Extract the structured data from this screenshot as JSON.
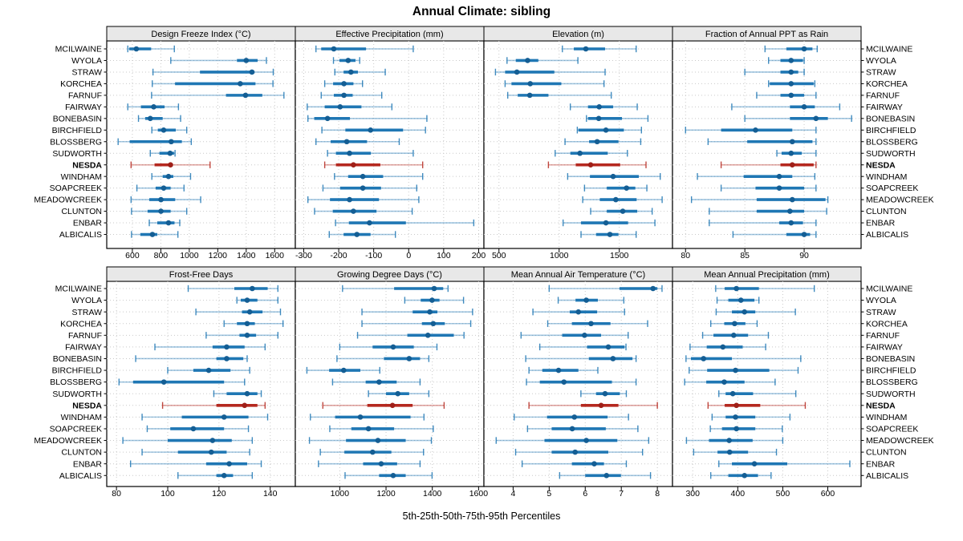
{
  "chart_data": {
    "type": "scatter",
    "subtype": "five-number-percentile-dotplot",
    "title": "Annual Climate: sibling",
    "caption": "5th-25th-50th-75th-95th Percentiles",
    "percentiles": [
      5,
      25,
      50,
      75,
      95
    ],
    "legend": "none",
    "grid": true,
    "highlight_station": "NESDA",
    "colors": {
      "series": "#1f77b4",
      "series_dot": "#145e94",
      "highlight": "#b5281f",
      "highlight_dot": "#9f1f18",
      "strip_bg": "#e8e8e8",
      "grid": "#c9c9c9",
      "border": "#000000"
    },
    "stations": [
      "MCILWAINE",
      "WYOLA",
      "STRAW",
      "KORCHEA",
      "FARNUF",
      "FAIRWAY",
      "BONEBASIN",
      "BIRCHFIELD",
      "BLOSSBERG",
      "SUDWORTH",
      "NESDA",
      "WINDHAM",
      "SOAPCREEK",
      "MEADOWCREEK",
      "CLUNTON",
      "ENBAR",
      "ALBICALIS"
    ],
    "panels": [
      {
        "label": "Design Freeze Index (°C)",
        "ticks": [
          600,
          800,
          1000,
          1200,
          1400,
          1600
        ],
        "xlim": [
          420,
          1745
        ],
        "values": [
          [
            568,
            578,
            628,
            732,
            895
          ],
          [
            870,
            1335,
            1400,
            1480,
            1542
          ],
          [
            745,
            1075,
            1440,
            1458,
            1590
          ],
          [
            740,
            900,
            1358,
            1465,
            1588
          ],
          [
            735,
            1258,
            1395,
            1513,
            1665
          ],
          [
            568,
            660,
            750,
            826,
            924
          ],
          [
            643,
            690,
            726,
            813,
            939
          ],
          [
            737,
            779,
            820,
            905,
            982
          ],
          [
            500,
            581,
            873,
            948,
            1014
          ],
          [
            726,
            790,
            865,
            893,
            900
          ],
          [
            591,
            756,
            868,
            885,
            1146
          ],
          [
            737,
            813,
            854,
            888,
            1009
          ],
          [
            632,
            764,
            820,
            869,
            963
          ],
          [
            591,
            719,
            801,
            901,
            1080
          ],
          [
            594,
            707,
            801,
            869,
            982
          ],
          [
            719,
            775,
            854,
            896,
            933
          ],
          [
            594,
            656,
            741,
            775,
            920
          ]
        ]
      },
      {
        "label": "Effective Precipitation (mm)",
        "ticks": [
          -300,
          -200,
          -100,
          0,
          100,
          200
        ],
        "xlim": [
          -324,
          215
        ],
        "values": [
          [
            -265,
            -250,
            -214,
            -122,
            13
          ],
          [
            -215,
            -198,
            -173,
            -152,
            -140
          ],
          [
            -211,
            -186,
            -165,
            -145,
            -67
          ],
          [
            -240,
            -216,
            -185,
            -158,
            -132
          ],
          [
            -250,
            -214,
            -185,
            -160,
            -77
          ],
          [
            -290,
            -240,
            -196,
            -135,
            -48
          ],
          [
            -288,
            -270,
            -232,
            -168,
            52
          ],
          [
            -248,
            -181,
            -109,
            -16,
            48
          ],
          [
            -265,
            -223,
            -177,
            -119,
            -27
          ],
          [
            -232,
            -208,
            -169,
            -108,
            13
          ],
          [
            -240,
            -208,
            -158,
            -81,
            40
          ],
          [
            -212,
            -173,
            -131,
            -73,
            40
          ],
          [
            -245,
            -196,
            -131,
            -79,
            23
          ],
          [
            -288,
            -225,
            -169,
            -85,
            29
          ],
          [
            -269,
            -217,
            -158,
            -92,
            10
          ],
          [
            -209,
            -171,
            -112,
            -8,
            186
          ],
          [
            -227,
            -186,
            -148,
            -109,
            -38
          ]
        ]
      },
      {
        "label": "Elevation (m)",
        "ticks": [
          500,
          1000,
          1500
        ],
        "xlim": [
          375,
          1942
        ],
        "values": [
          [
            1027,
            1122,
            1222,
            1382,
            1640
          ],
          [
            567,
            640,
            738,
            827,
            1156
          ],
          [
            471,
            551,
            649,
            960,
            1382
          ],
          [
            551,
            604,
            760,
            1018,
            1373
          ],
          [
            573,
            656,
            756,
            911,
            1433
          ],
          [
            1093,
            1240,
            1333,
            1449,
            1649
          ],
          [
            1227,
            1240,
            1329,
            1522,
            1738
          ],
          [
            1151,
            1160,
            1389,
            1538,
            1684
          ],
          [
            1049,
            1249,
            1316,
            1493,
            1678
          ],
          [
            967,
            1093,
            1173,
            1404,
            1567
          ],
          [
            911,
            1138,
            1262,
            1507,
            1722
          ],
          [
            1071,
            1256,
            1449,
            1662,
            1840
          ],
          [
            1211,
            1396,
            1560,
            1633,
            1729
          ],
          [
            1196,
            1338,
            1471,
            1644,
            1856
          ],
          [
            1262,
            1396,
            1529,
            1649,
            1773
          ],
          [
            1033,
            1182,
            1389,
            1573,
            1796
          ],
          [
            1182,
            1307,
            1422,
            1493,
            1640
          ]
        ]
      },
      {
        "label": "Fraction of Annual PPT as Rain",
        "ticks": [
          80,
          85,
          90
        ],
        "xlim": [
          78.9,
          94.8
        ],
        "values": [
          [
            86.7,
            88.5,
            90.0,
            90.7,
            91.1
          ],
          [
            87.0,
            88.0,
            88.9,
            89.9,
            90.0
          ],
          [
            85.0,
            88.0,
            88.9,
            89.5,
            90.0
          ],
          [
            87.0,
            87.1,
            88.9,
            90.8,
            90.9
          ],
          [
            86.0,
            88.0,
            88.9,
            90.0,
            91.0
          ],
          [
            83.9,
            88.8,
            90.0,
            90.9,
            93.0
          ],
          [
            85.0,
            88.8,
            91.0,
            92.0,
            94.0
          ],
          [
            80.0,
            83.0,
            85.9,
            89.0,
            91.0
          ],
          [
            81.9,
            85.2,
            89.0,
            90.7,
            91.0
          ],
          [
            87.7,
            88.1,
            88.9,
            89.8,
            91.0
          ],
          [
            83.0,
            88.0,
            89.0,
            90.8,
            91.0
          ],
          [
            81.0,
            84.9,
            87.9,
            89.0,
            90.9
          ],
          [
            83.0,
            85.9,
            87.9,
            90.0,
            91.0
          ],
          [
            80.5,
            86.0,
            89.0,
            91.8,
            92.0
          ],
          [
            82.0,
            86.0,
            88.8,
            90.0,
            91.9
          ],
          [
            82.0,
            87.9,
            88.9,
            89.9,
            91.0
          ],
          [
            84.0,
            88.5,
            90.0,
            90.5,
            91.0
          ]
        ]
      },
      {
        "label": "Frost-Free Days",
        "ticks": [
          80,
          100,
          120,
          140
        ],
        "xlim": [
          76.2,
          149.8
        ],
        "values": [
          [
            108,
            126,
            133,
            139,
            143
          ],
          [
            127,
            128.5,
            131,
            135,
            143
          ],
          [
            111,
            129,
            132,
            137,
            144
          ],
          [
            122,
            127,
            131,
            134,
            145
          ],
          [
            115,
            128,
            131,
            134.5,
            143
          ],
          [
            95,
            117.5,
            123,
            130,
            138
          ],
          [
            87.5,
            119,
            123,
            129.5,
            131
          ],
          [
            100,
            110,
            116,
            124.5,
            132
          ],
          [
            81,
            86.5,
            98.5,
            122,
            130
          ],
          [
            118,
            123,
            131,
            135,
            136.5
          ],
          [
            98,
            119,
            130,
            135,
            138
          ],
          [
            90,
            105.5,
            122,
            131.5,
            139
          ],
          [
            92,
            101,
            110,
            122,
            131.5
          ],
          [
            82.5,
            100,
            117.5,
            125,
            133
          ],
          [
            90,
            104,
            117,
            123,
            132
          ],
          [
            85.5,
            115,
            124,
            131,
            136.5
          ],
          [
            104,
            119,
            122,
            125.5,
            133
          ]
        ]
      },
      {
        "label": "Growing Degree Days (°C)",
        "ticks": [
          1000,
          1200,
          1400,
          1600
        ],
        "xlim": [
          808,
          1623
        ],
        "values": [
          [
            1012,
            1235,
            1408,
            1447,
            1468
          ],
          [
            1281,
            1350,
            1399,
            1431,
            1535
          ],
          [
            1096,
            1315,
            1389,
            1422,
            1574
          ],
          [
            1096,
            1355,
            1404,
            1454,
            1566
          ],
          [
            1077,
            1292,
            1381,
            1493,
            1537
          ],
          [
            1000,
            1142,
            1231,
            1320,
            1420
          ],
          [
            988,
            1191,
            1300,
            1347,
            1385
          ],
          [
            858,
            954,
            1017,
            1089,
            1173
          ],
          [
            969,
            1112,
            1170,
            1246,
            1347
          ],
          [
            1124,
            1200,
            1251,
            1300,
            1385
          ],
          [
            927,
            1119,
            1228,
            1315,
            1451
          ],
          [
            873,
            980,
            1089,
            1306,
            1364
          ],
          [
            957,
            1050,
            1124,
            1235,
            1404
          ],
          [
            869,
            1027,
            1165,
            1285,
            1396
          ],
          [
            916,
            1020,
            1142,
            1223,
            1362
          ],
          [
            908,
            1101,
            1179,
            1248,
            1347
          ],
          [
            1023,
            1170,
            1231,
            1285,
            1399
          ]
        ]
      },
      {
        "label": "Mean Annual Air Temperature (°C)",
        "ticks": [
          4,
          5,
          6,
          7,
          8
        ],
        "xlim": [
          3.19,
          8.42
        ],
        "values": [
          [
            5.0,
            6.95,
            7.88,
            8.0,
            8.13
          ],
          [
            5.25,
            5.73,
            6.03,
            6.35,
            7.07
          ],
          [
            4.55,
            5.57,
            5.81,
            6.33,
            7.09
          ],
          [
            4.96,
            5.63,
            6.16,
            6.7,
            7.73
          ],
          [
            4.22,
            5.36,
            5.98,
            6.44,
            7.19
          ],
          [
            4.74,
            6.05,
            6.64,
            7.09,
            7.13
          ],
          [
            4.35,
            6.1,
            6.77,
            7.31,
            7.41
          ],
          [
            4.44,
            4.81,
            5.26,
            5.81,
            6.35
          ],
          [
            4.37,
            4.74,
            5.41,
            6.74,
            7.41
          ],
          [
            5.88,
            6.3,
            6.55,
            6.96,
            7.14
          ],
          [
            4.44,
            5.88,
            6.44,
            6.92,
            8.0
          ],
          [
            4.03,
            4.94,
            5.7,
            6.62,
            7.2
          ],
          [
            4.4,
            5.07,
            5.64,
            6.57,
            7.46
          ],
          [
            3.53,
            4.87,
            6.03,
            6.89,
            7.76
          ],
          [
            4.07,
            5.07,
            5.72,
            6.64,
            7.59
          ],
          [
            4.25,
            5.63,
            6.25,
            6.52,
            7.14
          ],
          [
            5.29,
            6.0,
            6.59,
            6.99,
            7.81
          ]
        ]
      },
      {
        "label": "Mean Annual Precipitation (mm)",
        "ticks": [
          300,
          400,
          500,
          600
        ],
        "xlim": [
          255,
          674
        ],
        "values": [
          [
            351,
            371,
            397,
            447,
            570
          ],
          [
            354,
            379,
            407,
            437,
            447
          ],
          [
            352,
            387,
            415,
            439,
            528
          ],
          [
            340,
            370,
            393,
            417,
            443
          ],
          [
            322,
            346,
            391,
            423,
            468
          ],
          [
            294,
            331,
            367,
            411,
            462
          ],
          [
            285,
            296,
            324,
            387,
            540
          ],
          [
            292,
            332,
            395,
            470,
            534
          ],
          [
            282,
            330,
            370,
            415,
            483
          ],
          [
            358,
            373,
            389,
            434,
            529
          ],
          [
            334,
            371,
            397,
            450,
            550
          ],
          [
            343,
            373,
            395,
            439,
            516
          ],
          [
            339,
            365,
            397,
            439,
            499
          ],
          [
            286,
            336,
            381,
            433,
            500
          ],
          [
            302,
            355,
            382,
            423,
            486
          ],
          [
            358,
            387,
            437,
            510,
            649
          ],
          [
            340,
            379,
            415,
            445,
            474
          ]
        ]
      }
    ]
  }
}
